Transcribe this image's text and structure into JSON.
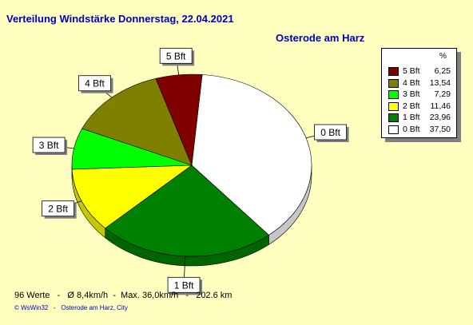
{
  "title": "Verteilung Windstärke  Donnerstag, 22.04.2021",
  "subtitle": "Osterode am Harz",
  "legend_header": "%",
  "footer": "96 Werte   -   Ø 8,4km/h  -  Max. 36,0km/h   -   202.6 km",
  "copyright": "© WsWin32   -   Osterode am Harz, City",
  "chart_data": {
    "type": "pie",
    "title": "Verteilung Windstärke  Donnerstag, 22.04.2021",
    "subtitle": "Osterode am Harz",
    "unit": "%",
    "legend_position": "top-right",
    "slices": [
      {
        "label": "0 Bft",
        "value": 37.5,
        "display": "37,50",
        "color": "#FFFFFF"
      },
      {
        "label": "1 Bft",
        "value": 23.96,
        "display": "23,96",
        "color": "#008000"
      },
      {
        "label": "2 Bft",
        "value": 11.46,
        "display": "11,46",
        "color": "#FFFF00"
      },
      {
        "label": "3 Bft",
        "value": 7.29,
        "display": "7,29",
        "color": "#00FF00"
      },
      {
        "label": "4 Bft",
        "value": 13.54,
        "display": "13,54",
        "color": "#808000"
      },
      {
        "label": "5 Bft",
        "value": 6.25,
        "display": "6,25",
        "color": "#800000"
      }
    ],
    "legend_order": [
      "5 Bft",
      "4 Bft",
      "3 Bft",
      "2 Bft",
      "1 Bft",
      "0 Bft"
    ]
  }
}
